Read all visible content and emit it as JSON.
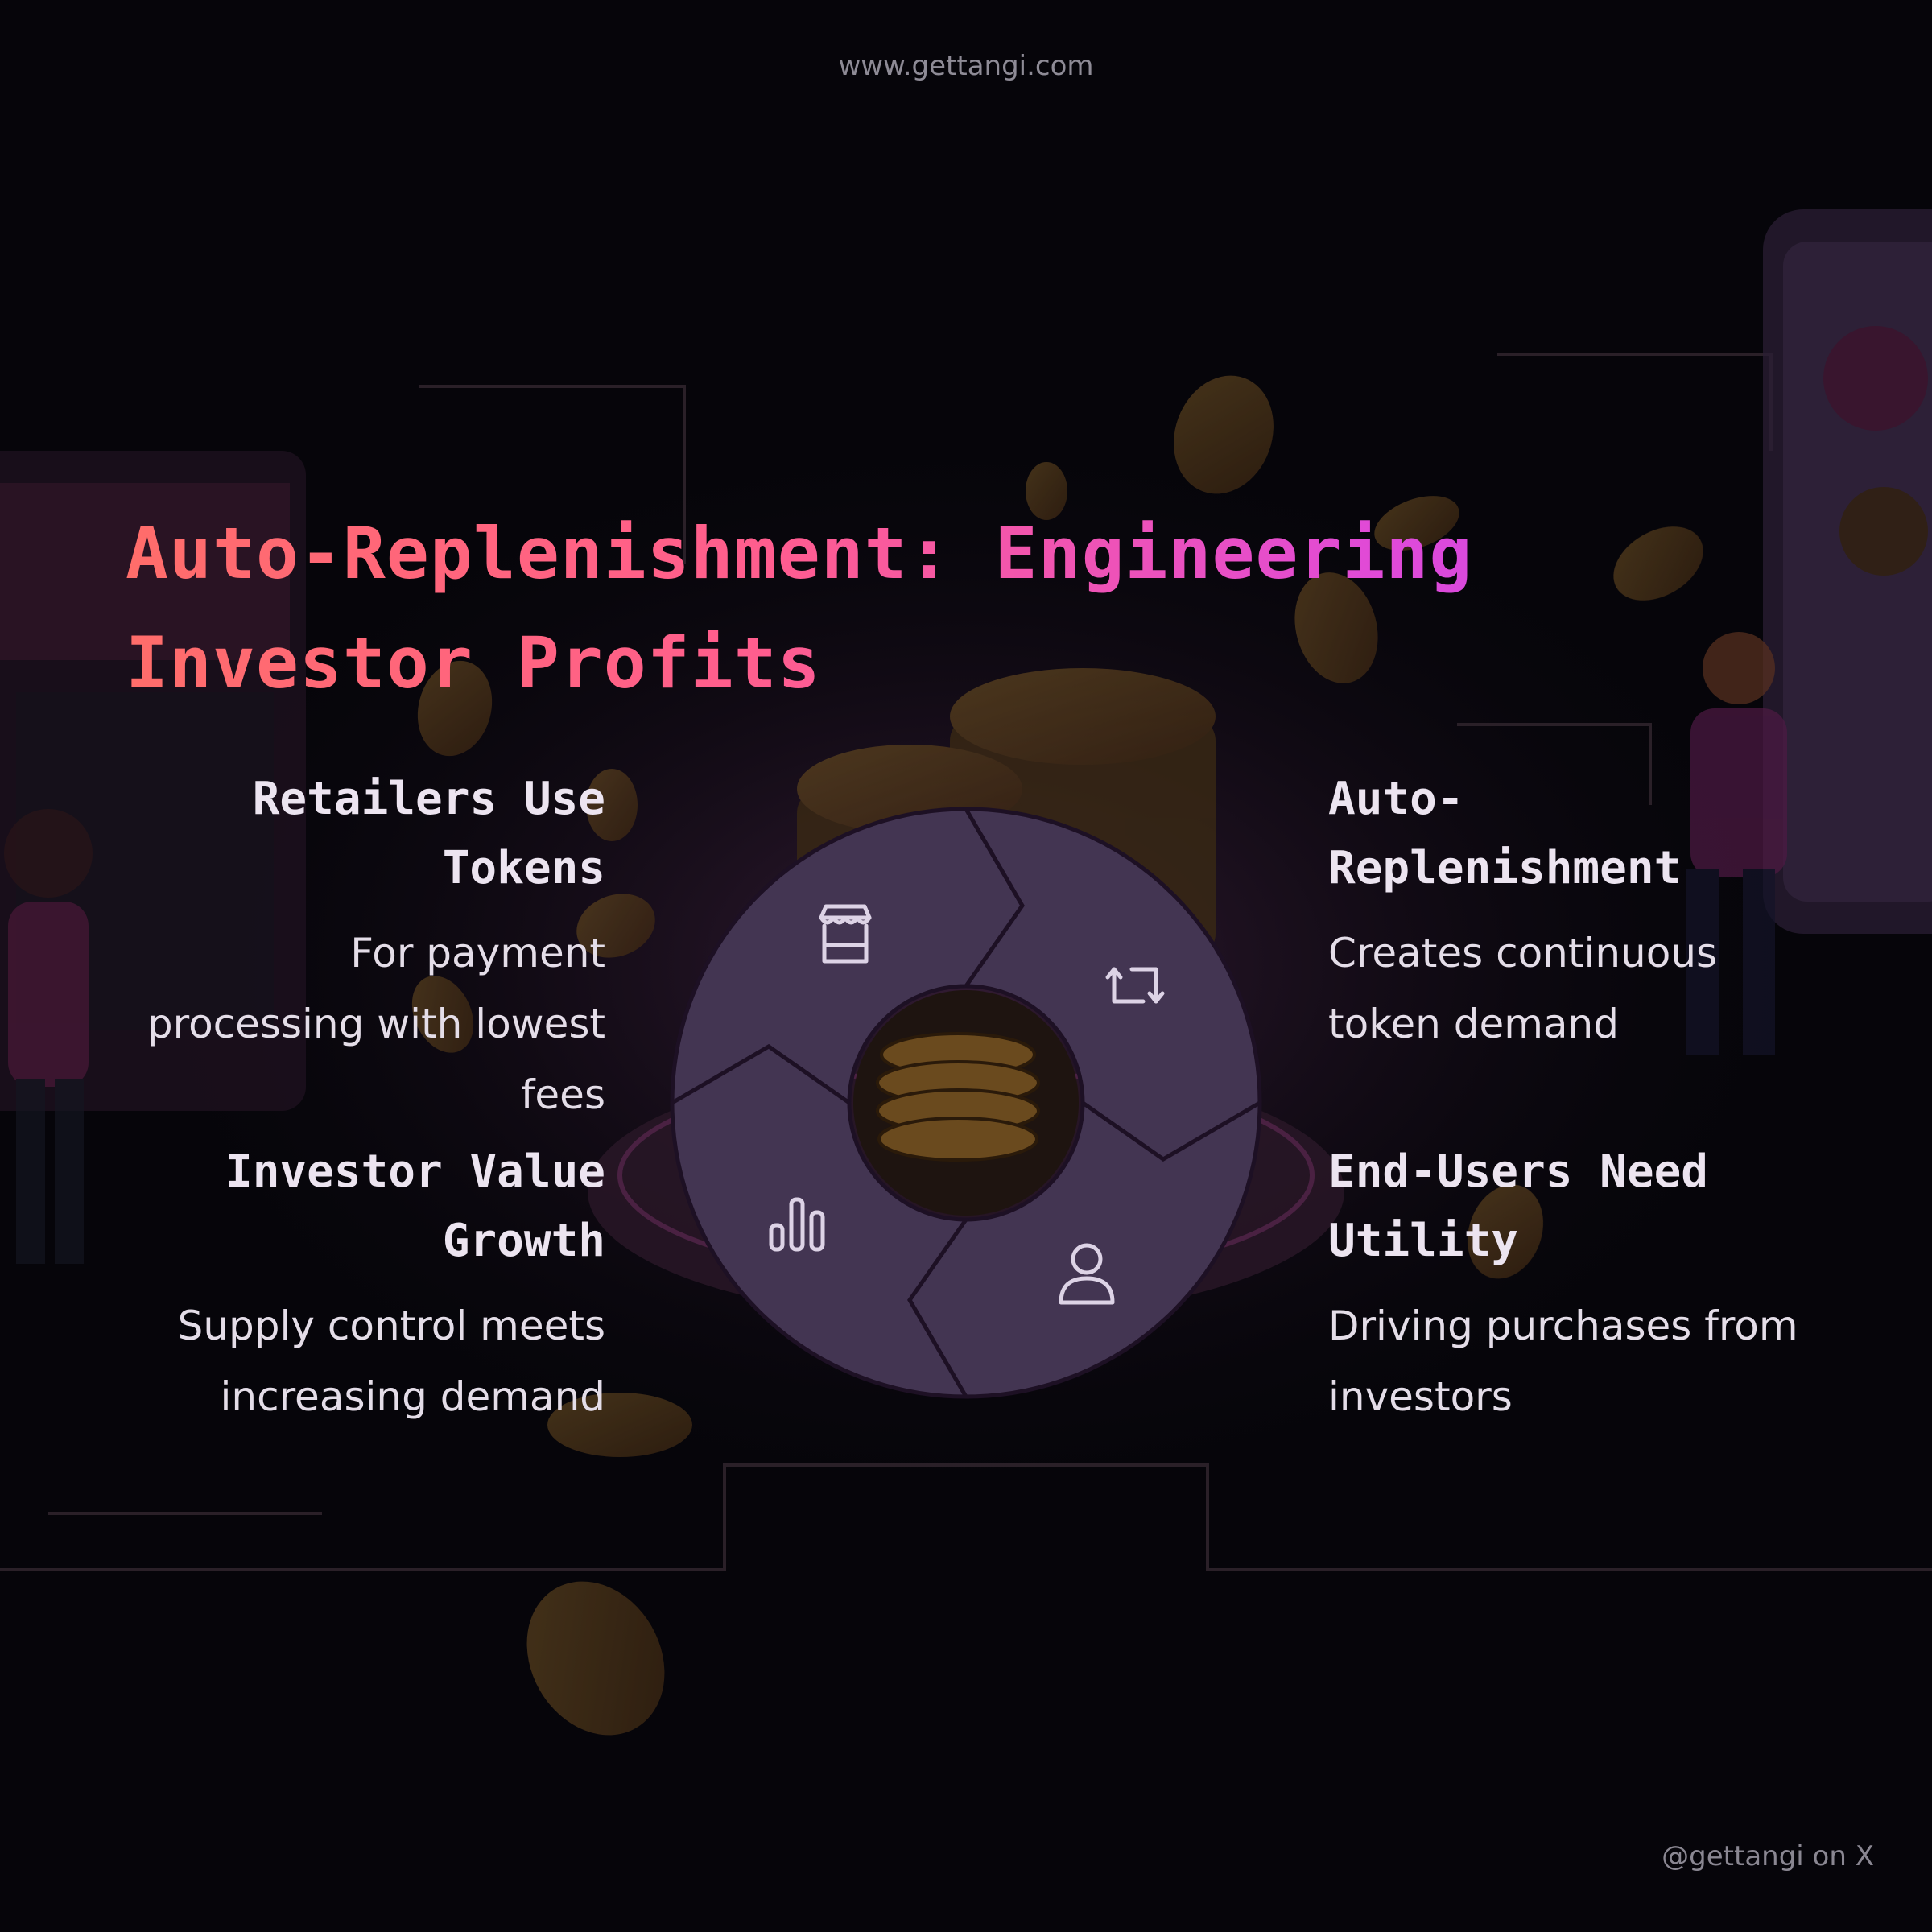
{
  "site_url": "www.gettangi.com",
  "title": "Auto-Replenishment: Engineering Investor Profits",
  "social_handle": "@gettangi on X",
  "theme": {
    "title_gradient": [
      "#ff6d6a",
      "#ff5d8f",
      "#e04ad8",
      "#c845e8"
    ],
    "ring_color": "#433552",
    "text_color": "#ece4f0"
  },
  "steps": [
    {
      "title": "Retailers Use Tokens",
      "description": "For payment processing with lowest fees",
      "icon": "store-icon"
    },
    {
      "title": "Auto-Replenishment",
      "description": "Creates continuous token demand",
      "icon": "repeat-icon"
    },
    {
      "title": "End-Users Need Utility",
      "description": "Driving purchases from investors",
      "icon": "user-icon"
    },
    {
      "title": "Investor Value Growth",
      "description": "Supply control meets increasing demand",
      "icon": "bar-chart-icon"
    }
  ]
}
